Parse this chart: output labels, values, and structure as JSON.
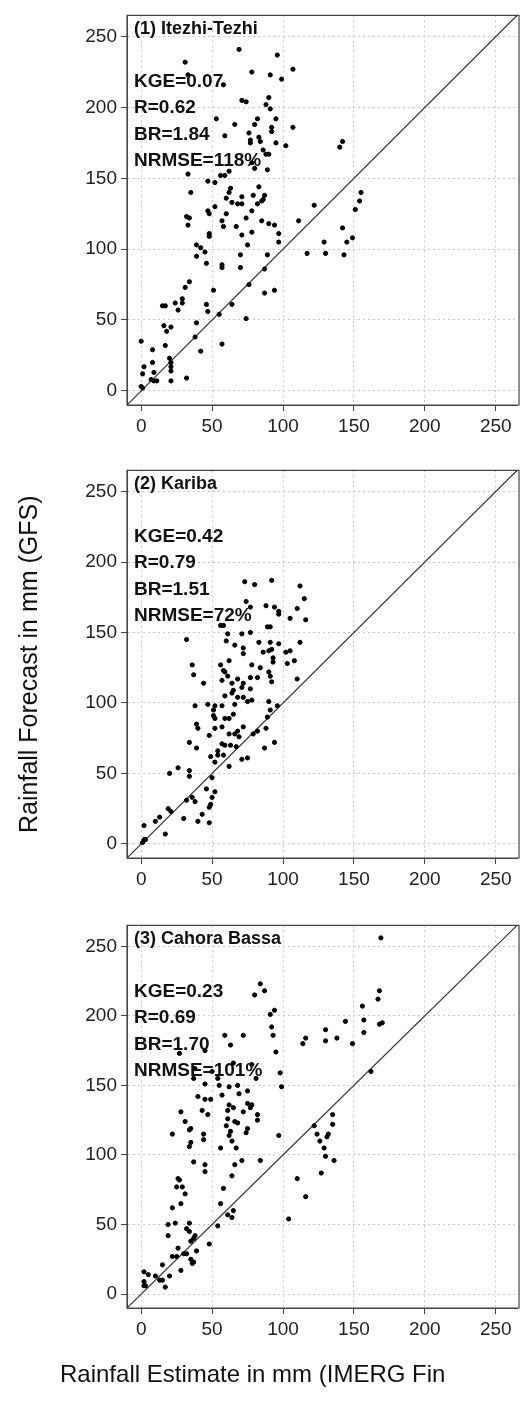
{
  "chart_data": [
    {
      "type": "scatter",
      "title": "(1) Itezhi-Tezhi",
      "annotations": [
        "KGE=0.07",
        "R=0.62",
        "BR=1.84",
        "NRMSE=118%"
      ],
      "xlim": [
        -10,
        265
      ],
      "ylim": [
        -10,
        265
      ],
      "xticks": [
        0,
        50,
        100,
        150,
        200,
        250
      ],
      "yticks": [
        0,
        50,
        100,
        150,
        200,
        250
      ],
      "grid": true,
      "marker": "circle",
      "series": [
        {
          "type": "scatter",
          "color": "#000000",
          "x": [
            31,
            69,
            96,
            107,
            78,
            91,
            99,
            33,
            58,
            71,
            74,
            90,
            88,
            91,
            53,
            66,
            80,
            82,
            95,
            92,
            92,
            107,
            59,
            76,
            77,
            83,
            84,
            95,
            102,
            140,
            142,
            77,
            86,
            88,
            90,
            78,
            80,
            89,
            62,
            59,
            56,
            33,
            52,
            47,
            63,
            62,
            83,
            35,
            60,
            71,
            79,
            87,
            86,
            64,
            68,
            71,
            82,
            85,
            122,
            52,
            47,
            78,
            60,
            48,
            32,
            34,
            74,
            57,
            85,
            90,
            94,
            111,
            33,
            58,
            67,
            71,
            78,
            97,
            48,
            48,
            75,
            97,
            129,
            142,
            145,
            149,
            151,
            154,
            155,
            39,
            42,
            45,
            39,
            117,
            130,
            143,
            70,
            89,
            57,
            57,
            70,
            46,
            34,
            87,
            31,
            51,
            94,
            87,
            76,
            29,
            29,
            24,
            26,
            15,
            17,
            46,
            47,
            64,
            55,
            74,
            39,
            16,
            21,
            18,
            38,
            57,
            17,
            0,
            8,
            42,
            8,
            20,
            21,
            21,
            21,
            21,
            32,
            2,
            1,
            9,
            7,
            9,
            11,
            0,
            1
          ],
          "values": [
            232,
            241,
            237,
            227,
            225,
            223,
            220,
            223,
            216,
            205,
            204,
            207,
            202,
            199,
            192,
            188,
            188,
            192,
            192,
            186,
            183,
            186,
            180,
            182,
            177,
            179,
            176,
            175,
            173,
            172,
            176,
            175,
            170,
            167,
            167,
            161,
            157,
            156,
            155,
            152,
            152,
            153,
            147,
            148,
            143,
            140,
            144,
            140,
            136,
            137,
            138,
            138,
            135,
            133,
            132,
            132,
            132,
            134,
            131,
            130,
            127,
            127,
            125,
            125,
            123,
            122,
            122,
            120,
            120,
            118,
            117,
            120,
            117,
            116,
            116,
            110,
            112,
            111,
            111,
            109,
            103,
            105,
            105,
            115,
            105,
            108,
            128,
            134,
            140,
            103,
            101,
            98,
            95,
            97,
            97,
            96,
            96,
            96,
            89,
            87,
            87,
            90,
            77,
            86,
            73,
            71,
            71,
            69,
            75,
            65,
            62,
            62,
            57,
            60,
            60,
            61,
            56,
            61,
            54,
            51,
            48,
            46,
            45,
            42,
            38,
            33,
            32,
            35,
            29,
            28,
            20,
            23,
            20,
            17,
            14,
            7,
            9,
            17,
            12,
            13,
            8,
            7,
            7,
            3,
            2
          ]
        },
        {
          "type": "line",
          "marker": "none",
          "color": "#333333",
          "x": [
            -10,
            265
          ],
          "values": [
            -10,
            265
          ]
        }
      ]
    },
    {
      "type": "scatter",
      "title": "(2) Kariba",
      "ylabel": "Rainfall Forecast in mm (GFS)",
      "annotations": [
        "KGE=0.42",
        "R=0.79",
        "BR=1.51",
        "NRMSE=72%"
      ],
      "xlim": [
        -10,
        265
      ],
      "ylim": [
        -10,
        265
      ],
      "xticks": [
        0,
        50,
        100,
        150,
        200,
        250
      ],
      "yticks": [
        0,
        50,
        100,
        150,
        200,
        250
      ],
      "grid": true,
      "marker": "circle",
      "series": [
        {
          "type": "scatter",
          "color": "#000000",
          "x": [
            73,
            80,
            92,
            112,
            115,
            110,
            116,
            105,
            97,
            94,
            97,
            88,
            74,
            77,
            56,
            58,
            61,
            71,
            77,
            89,
            91,
            32,
            60,
            66,
            83,
            97,
            91,
            112,
            72,
            72,
            86,
            90,
            92,
            105,
            102,
            108,
            93,
            93,
            103,
            36,
            56,
            62,
            78,
            84,
            58,
            59,
            37,
            90,
            77,
            82,
            91,
            61,
            68,
            57,
            110,
            92,
            44,
            64,
            72,
            71,
            77,
            65,
            64,
            68,
            59,
            72,
            75,
            78,
            90,
            47,
            52,
            57,
            66,
            38,
            96,
            91,
            51,
            51,
            65,
            52,
            59,
            62,
            89,
            39,
            40,
            52,
            57,
            72,
            88,
            68,
            62,
            66,
            69,
            48,
            79,
            82,
            34,
            94,
            39,
            57,
            59,
            63,
            67,
            87,
            54,
            49,
            54,
            58,
            52,
            62,
            71,
            75,
            26,
            34,
            20,
            34,
            50,
            46,
            52,
            50,
            49,
            48,
            36,
            38,
            32,
            43,
            40,
            48,
            30,
            19,
            21,
            13,
            10,
            2,
            17,
            2,
            1,
            3
          ],
          "values": [
            186,
            184,
            187,
            183,
            174,
            167,
            159,
            160,
            163,
            168,
            165,
            169,
            172,
            168,
            155,
            155,
            149,
            149,
            150,
            154,
            154,
            145,
            144,
            141,
            143,
            142,
            143,
            143,
            139,
            135,
            136,
            137,
            138,
            137,
            136,
            130,
            132,
            129,
            128,
            127,
            127,
            130,
            127,
            125,
            123,
            122,
            120,
            122,
            118,
            118,
            119,
            119,
            117,
            116,
            117,
            115,
            114,
            114,
            114,
            111,
            110,
            109,
            107,
            104,
            105,
            104,
            101,
            102,
            101,
            99,
            98,
            98,
            99,
            98,
            98,
            95,
            95,
            91,
            92,
            89,
            89,
            89,
            90,
            85,
            82,
            82,
            83,
            83,
            82,
            80,
            78,
            78,
            76,
            77,
            78,
            80,
            72,
            72,
            68,
            71,
            70,
            70,
            69,
            68,
            66,
            62,
            63,
            63,
            58,
            55,
            60,
            61,
            54,
            52,
            50,
            48,
            47,
            39,
            37,
            33,
            28,
            26,
            33,
            30,
            31,
            21,
            16,
            15,
            18,
            25,
            23,
            19,
            16,
            13,
            7,
            3,
            1,
            3
          ]
        },
        {
          "type": "line",
          "marker": "none",
          "color": "#333333",
          "x": [
            -10,
            265
          ],
          "values": [
            -10,
            265
          ]
        }
      ]
    },
    {
      "type": "scatter",
      "title": "(3) Cahora Bassa",
      "xlabel": "Rainfall Estimate in mm (IMERG Fin",
      "annotations": [
        "KGE=0.23",
        "R=0.69",
        "BR=1.70",
        "NRMSE=101%"
      ],
      "xlim": [
        -10,
        265
      ],
      "ylim": [
        -10,
        265
      ],
      "xticks": [
        0,
        50,
        100,
        150,
        200,
        250
      ],
      "yticks": [
        0,
        50,
        100,
        150,
        200,
        250
      ],
      "grid": true,
      "marker": "circle",
      "series": [
        {
          "type": "scatter",
          "color": "#000000",
          "x": [
            169,
            84,
            87,
            80,
            168,
            167,
            156,
            94,
            91,
            157,
            144,
            168,
            170,
            92,
            130,
            157,
            93,
            59,
            72,
            116,
            138,
            114,
            130,
            149,
            63,
            45,
            95,
            27,
            38,
            50,
            65,
            78,
            81,
            162,
            98,
            99,
            54,
            37,
            55,
            62,
            68,
            45,
            75,
            57,
            69,
            40,
            45,
            49,
            75,
            78,
            62,
            65,
            77,
            28,
            43,
            61,
            72,
            47,
            82,
            82,
            61,
            31,
            66,
            68,
            35,
            34,
            60,
            75,
            63,
            62,
            74,
            22,
            44,
            97,
            44,
            64,
            35,
            34,
            67,
            56,
            71,
            84,
            37,
            45,
            45,
            66,
            64,
            122,
            124,
            126,
            131,
            132,
            129,
            130,
            135,
            135,
            136,
            127,
            110,
            116,
            104,
            26,
            27,
            25,
            29,
            31,
            28,
            58,
            56,
            22,
            61,
            64,
            65,
            19,
            24,
            34,
            32,
            34,
            54,
            19,
            38,
            37,
            35,
            39,
            26,
            30,
            32,
            48,
            22,
            25,
            35,
            37,
            36,
            28,
            15,
            20,
            15,
            17,
            10,
            13,
            2,
            5,
            2,
            2,
            3
          ],
          "values": [
            256,
            223,
            218,
            215,
            218,
            212,
            207,
            204,
            201,
            197,
            196,
            194,
            195,
            192,
            190,
            188,
            186,
            186,
            186,
            184,
            184,
            180,
            182,
            180,
            179,
            175,
            174,
            173,
            162,
            160,
            166,
            165,
            155,
            160,
            159,
            149,
            155,
            155,
            150,
            149,
            150,
            151,
            146,
            143,
            144,
            142,
            140,
            140,
            137,
            136,
            136,
            134,
            134,
            131,
            132,
            132,
            131,
            129,
            129,
            125,
            126,
            124,
            124,
            123,
            119,
            118,
            121,
            119,
            117,
            114,
            116,
            115,
            115,
            114,
            111,
            110,
            109,
            106,
            105,
            105,
            96,
            96,
            95,
            93,
            88,
            93,
            85,
            121,
            115,
            110,
            113,
            115,
            105,
            99,
            122,
            129,
            96,
            87,
            83,
            70,
            54,
            83,
            82,
            77,
            77,
            72,
            65,
            76,
            65,
            62,
            57,
            55,
            60,
            50,
            51,
            51,
            47,
            45,
            49,
            42,
            42,
            40,
            38,
            31,
            33,
            29,
            29,
            36,
            27,
            27,
            25,
            23,
            22,
            17,
            21,
            13,
            10,
            5,
            13,
            10,
            16,
            14,
            9,
            6,
            6
          ]
        },
        {
          "type": "line",
          "marker": "none",
          "color": "#333333",
          "x": [
            -10,
            265
          ],
          "values": [
            -10,
            265
          ]
        }
      ]
    }
  ]
}
